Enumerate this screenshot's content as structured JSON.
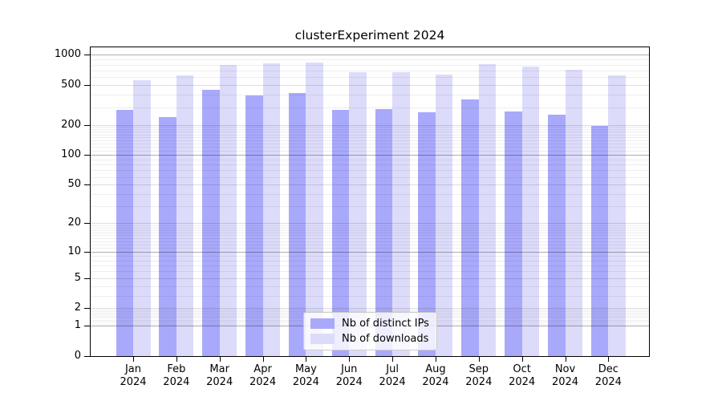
{
  "chart_data": {
    "type": "bar",
    "title": "clusterExperiment 2024",
    "xlabel": "",
    "ylabel": "",
    "yscale": "log1p",
    "ylim": [
      0,
      1189
    ],
    "yticks": [
      0,
      1,
      2,
      5,
      10,
      20,
      50,
      100,
      200,
      500,
      1000
    ],
    "grid": true,
    "legend_position": "lower center",
    "categories": [
      "Jan 2024",
      "Feb 2024",
      "Mar 2024",
      "Apr 2024",
      "May 2024",
      "Jun 2024",
      "Jul 2024",
      "Aug 2024",
      "Sep 2024",
      "Oct 2024",
      "Nov 2024",
      "Dec 2024"
    ],
    "series": [
      {
        "name": "Nb of distinct IPs",
        "color": "#a9a9fb",
        "values": [
          283,
          240,
          448,
          393,
          415,
          281,
          288,
          266,
          358,
          270,
          254,
          194
        ]
      },
      {
        "name": "Nb of downloads",
        "color": "#dcdcfa",
        "values": [
          560,
          620,
          800,
          820,
          845,
          670,
          670,
          635,
          805,
          760,
          715,
          625
        ]
      }
    ]
  },
  "colors": {
    "axis": "#000000",
    "grid_power_of_ten": "rgba(0,0,0,0.32)",
    "grid_major": "rgba(0,0,0,0.13)",
    "grid_minor": "rgba(0,0,0,0.065)"
  }
}
